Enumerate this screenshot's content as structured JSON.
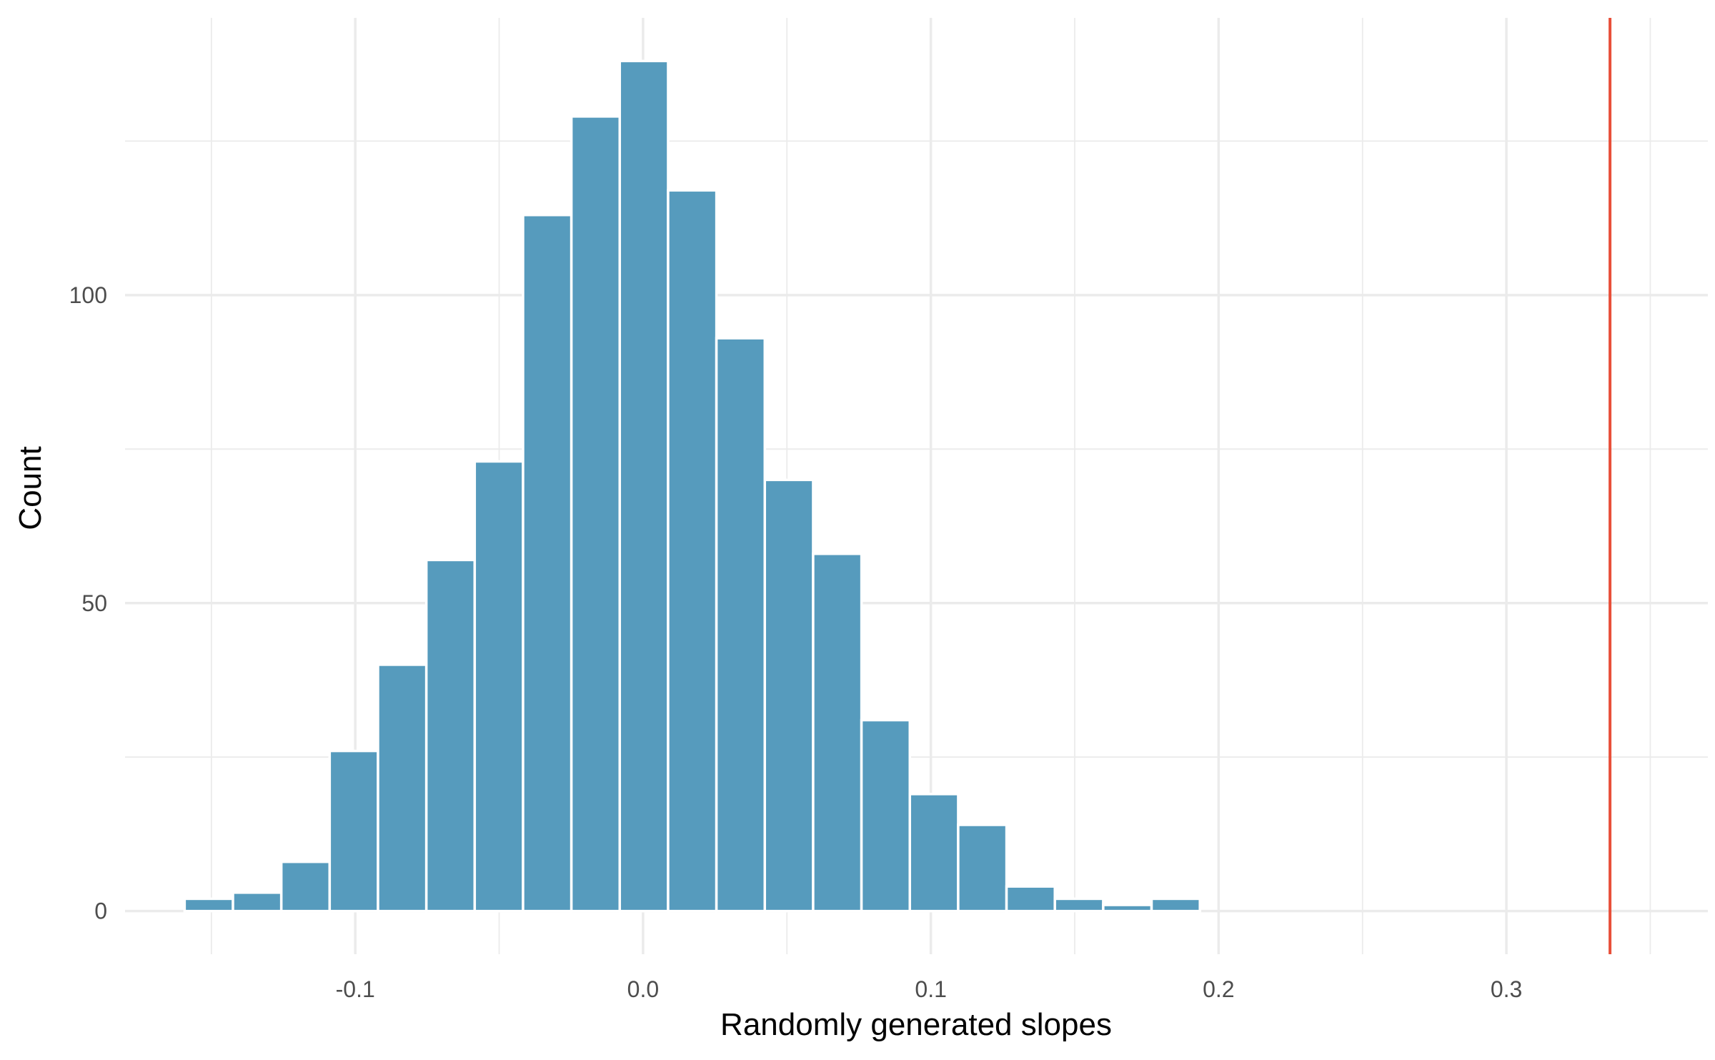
{
  "chart_data": {
    "type": "bar",
    "subtype": "histogram",
    "xlabel": "Randomly generated slopes",
    "ylabel": "Count",
    "xlim": [
      -0.18,
      0.37
    ],
    "ylim": [
      -7,
      145
    ],
    "x_ticks": [
      -0.1,
      0.0,
      0.1,
      0.2,
      0.3
    ],
    "x_tick_labels": [
      "-0.1",
      "0.0",
      "0.1",
      "0.2",
      "0.3"
    ],
    "x_minor_ticks": [
      -0.15,
      -0.05,
      0.05,
      0.15,
      0.25,
      0.35
    ],
    "y_ticks": [
      0,
      50,
      100
    ],
    "y_tick_labels": [
      "0",
      "50",
      "100"
    ],
    "y_minor_ticks": [
      25,
      75,
      125
    ],
    "grid": true,
    "bin_width": 0.0168,
    "bin_start": -0.1593,
    "counts": [
      2,
      3,
      8,
      26,
      40,
      57,
      73,
      113,
      129,
      138,
      117,
      93,
      70,
      58,
      31,
      19,
      14,
      4,
      2,
      1,
      2,
      0,
      0,
      0,
      0,
      0,
      0,
      0,
      0,
      0,
      0
    ],
    "reference_line": {
      "x": 0.336,
      "color": "#e8503a"
    },
    "bar_color": "#569bbd"
  }
}
